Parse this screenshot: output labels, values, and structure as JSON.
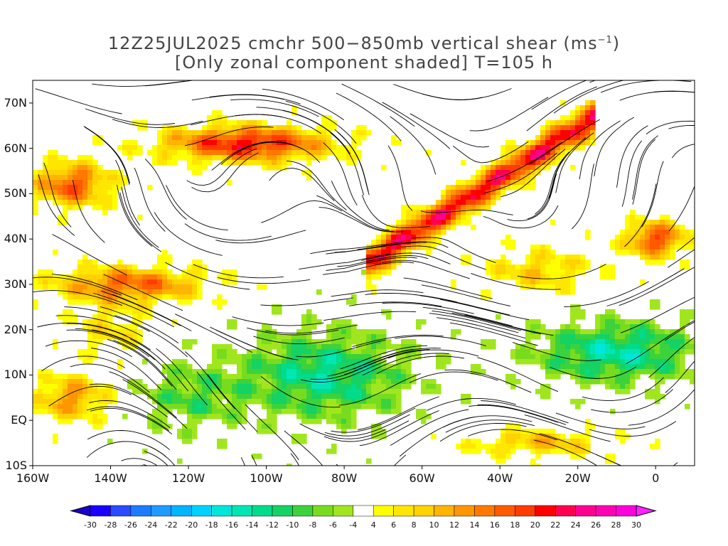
{
  "title": {
    "line1": "12Z25JUL2025 cmchr 500−850mb vertical shear (ms",
    "line1_sup": "−1",
    "line1_end": ")",
    "line2": "[Only zonal component shaded] T=105 h"
  },
  "map": {
    "lat_labels": [
      "70N",
      "60N",
      "50N",
      "40N",
      "30N",
      "20N",
      "10N",
      "EQ",
      "10S"
    ],
    "lon_labels": [
      "160W",
      "140W",
      "120W",
      "100W",
      "80W",
      "60W",
      "40W",
      "20W",
      "0"
    ],
    "lon_range": [
      -160,
      10
    ],
    "lat_range": [
      -10,
      75
    ]
  },
  "colorbar": {
    "labels": [
      "-30",
      "-28",
      "-26",
      "-24",
      "-22",
      "-20",
      "-18",
      "-16",
      "-14",
      "-12",
      "-10",
      "-8",
      "-6",
      "-4",
      "4",
      "6",
      "8",
      "10",
      "12",
      "14",
      "16",
      "18",
      "20",
      "22",
      "24",
      "26",
      "28",
      "30"
    ],
    "colors": [
      "#1a00ff",
      "#2a4bff",
      "#1e7bff",
      "#1e9bff",
      "#00b4ff",
      "#00d2ff",
      "#00e6dc",
      "#00e6b4",
      "#00dc8c",
      "#14d264",
      "#3cd23c",
      "#78dc1e",
      "#a0e61e",
      "#ffffff",
      "#ffff00",
      "#ffe600",
      "#ffd200",
      "#ffb400",
      "#ff9600",
      "#ff7800",
      "#ff5a00",
      "#ff3c00",
      "#ff0000",
      "#ff0050",
      "#ff0090",
      "#ff00b4",
      "#ff00dc"
    ],
    "left_arrow_color": "#1a00cc",
    "right_arrow_color": "#ff22ff"
  }
}
